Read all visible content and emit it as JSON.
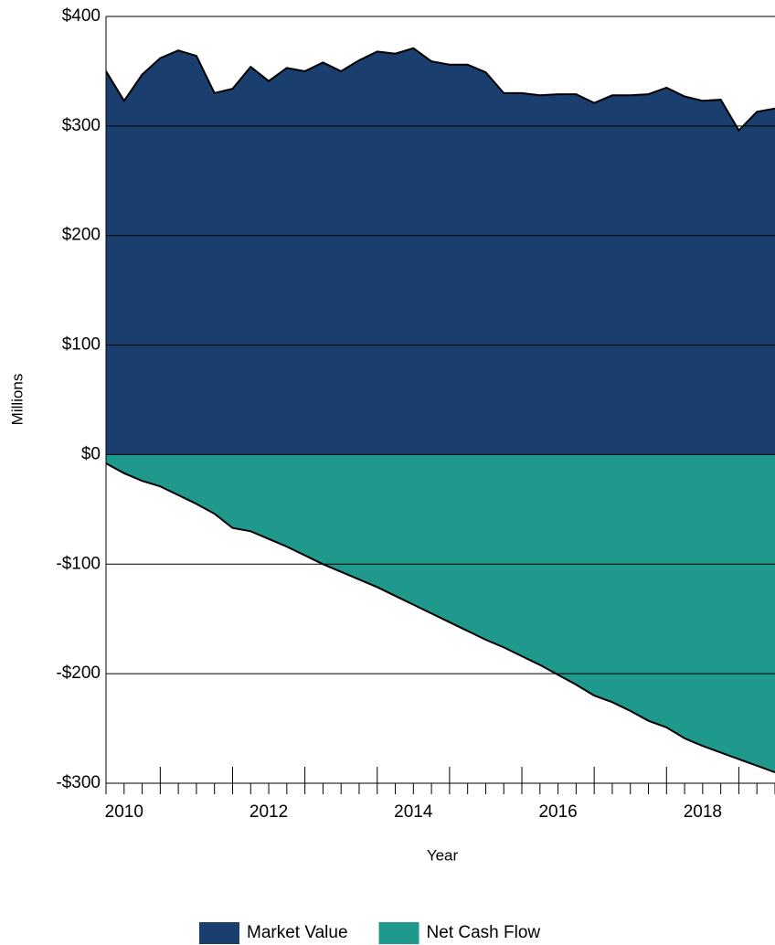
{
  "chart_data": {
    "type": "area",
    "x_label": "Year",
    "y_label": "Millions",
    "x": [
      2009.75,
      2010,
      2010.25,
      2010.5,
      2010.75,
      2011,
      2011.25,
      2011.5,
      2011.75,
      2012,
      2012.25,
      2012.5,
      2012.75,
      2013,
      2013.25,
      2013.5,
      2013.75,
      2014,
      2014.25,
      2014.5,
      2014.75,
      2015,
      2015.25,
      2015.5,
      2015.75,
      2016,
      2016.25,
      2016.5,
      2016.75,
      2017,
      2017.25,
      2017.5,
      2017.75,
      2018,
      2018.25,
      2018.5,
      2018.75,
      2019
    ],
    "series": [
      {
        "name": "Market Value",
        "color": "#1a3f6f",
        "values": [
          350,
          323,
          347,
          362,
          369,
          364,
          330,
          334,
          354,
          341,
          353,
          350,
          358,
          350,
          360,
          368,
          366,
          371,
          359,
          356,
          356,
          349,
          330,
          330,
          328,
          329,
          329,
          321,
          328,
          328,
          329,
          335,
          327,
          323,
          324,
          296,
          313,
          316
        ]
      },
      {
        "name": "Net Cash Flow",
        "color": "#1f998c",
        "values": [
          -8,
          -17,
          -24,
          -29,
          -37,
          -45,
          -54,
          -67,
          -70,
          -77,
          -84,
          -92,
          -100,
          -107,
          -114,
          -121,
          -129,
          -137,
          -145,
          -153,
          -161,
          -169,
          -176,
          -184,
          -192,
          -201,
          -210,
          -220,
          -226,
          -234,
          -243,
          -249,
          -259,
          -266,
          -272,
          -278,
          -284,
          -290
        ]
      }
    ],
    "xlim": [
      2009.75,
      2019
    ],
    "xticks": [
      2010,
      2012,
      2014,
      2016,
      2018
    ],
    "ylim": [
      -300,
      400
    ],
    "yticks": [
      {
        "value": 400,
        "label": "$400"
      },
      {
        "value": 300,
        "label": "$300"
      },
      {
        "value": 200,
        "label": "$200"
      },
      {
        "value": 100,
        "label": "$100"
      },
      {
        "value": 0,
        "label": "$0"
      },
      {
        "value": -100,
        "label": "-$100"
      },
      {
        "value": -200,
        "label": "-$200"
      },
      {
        "value": -300,
        "label": "-$300"
      }
    ],
    "grid": true
  }
}
